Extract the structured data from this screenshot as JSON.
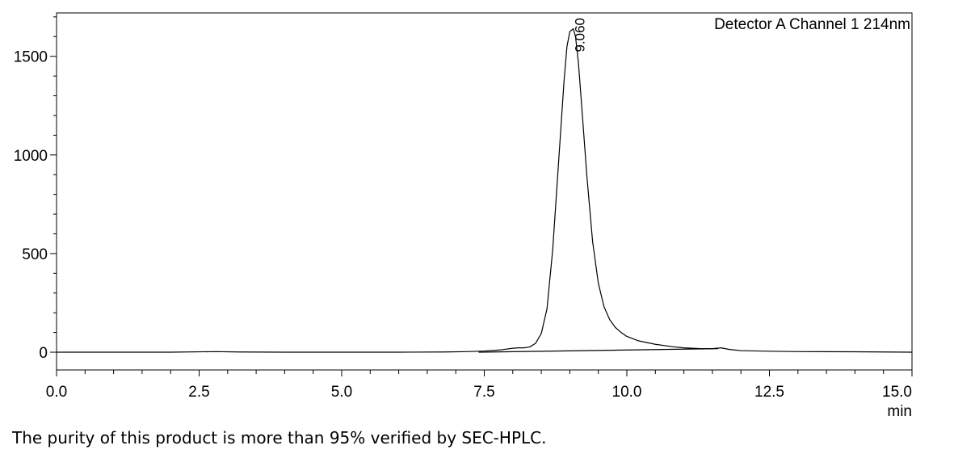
{
  "chart_data": {
    "type": "line",
    "title": "Detector A Channel 1 214nm",
    "xlabel": "min",
    "ylabel": "",
    "xlim": [
      0.0,
      15.0
    ],
    "ylim": [
      -90,
      1720
    ],
    "x_ticks": [
      0.0,
      2.5,
      5.0,
      7.5,
      10.0,
      12.5,
      15.0
    ],
    "x_tick_labels": [
      "0.0",
      "2.5",
      "5.0",
      "7.5",
      "10.0",
      "12.5",
      "15.0"
    ],
    "y_ticks": [
      0,
      500,
      1000,
      1500
    ],
    "y_tick_labels": [
      "0",
      "500",
      "1000",
      "1500"
    ],
    "grid": false,
    "peak_annotations": [
      {
        "x": 9.06,
        "label": "9.060"
      }
    ],
    "series": [
      {
        "x": [
          0.0,
          1.0,
          2.0,
          2.8,
          3.2,
          4.0,
          5.0,
          6.0,
          6.8,
          7.2,
          7.5,
          7.8,
          8.0,
          8.1,
          8.2,
          8.3,
          8.4,
          8.5,
          8.6,
          8.7,
          8.8,
          8.9,
          8.95,
          9.0,
          9.06,
          9.1,
          9.15,
          9.2,
          9.3,
          9.4,
          9.5,
          9.6,
          9.7,
          9.8,
          9.9,
          10.0,
          10.2,
          10.5,
          10.8,
          11.0,
          11.3,
          11.5,
          11.65,
          11.8,
          12.0,
          12.5,
          13.0,
          14.0,
          15.0
        ],
        "y": [
          0,
          0,
          0,
          3,
          1,
          0,
          0,
          0,
          1,
          3,
          6,
          12,
          20,
          22,
          22,
          27,
          45,
          95,
          220,
          520,
          950,
          1380,
          1550,
          1625,
          1640,
          1600,
          1470,
          1280,
          890,
          560,
          350,
          230,
          165,
          125,
          100,
          80,
          58,
          40,
          28,
          22,
          18,
          18,
          22,
          14,
          8,
          5,
          3,
          2,
          0
        ]
      },
      {
        "name": "baseline",
        "x": [
          7.4,
          11.6
        ],
        "y": [
          0,
          18
        ]
      }
    ]
  },
  "caption": "The purity of this product is more than 95% verified by SEC-HPLC."
}
